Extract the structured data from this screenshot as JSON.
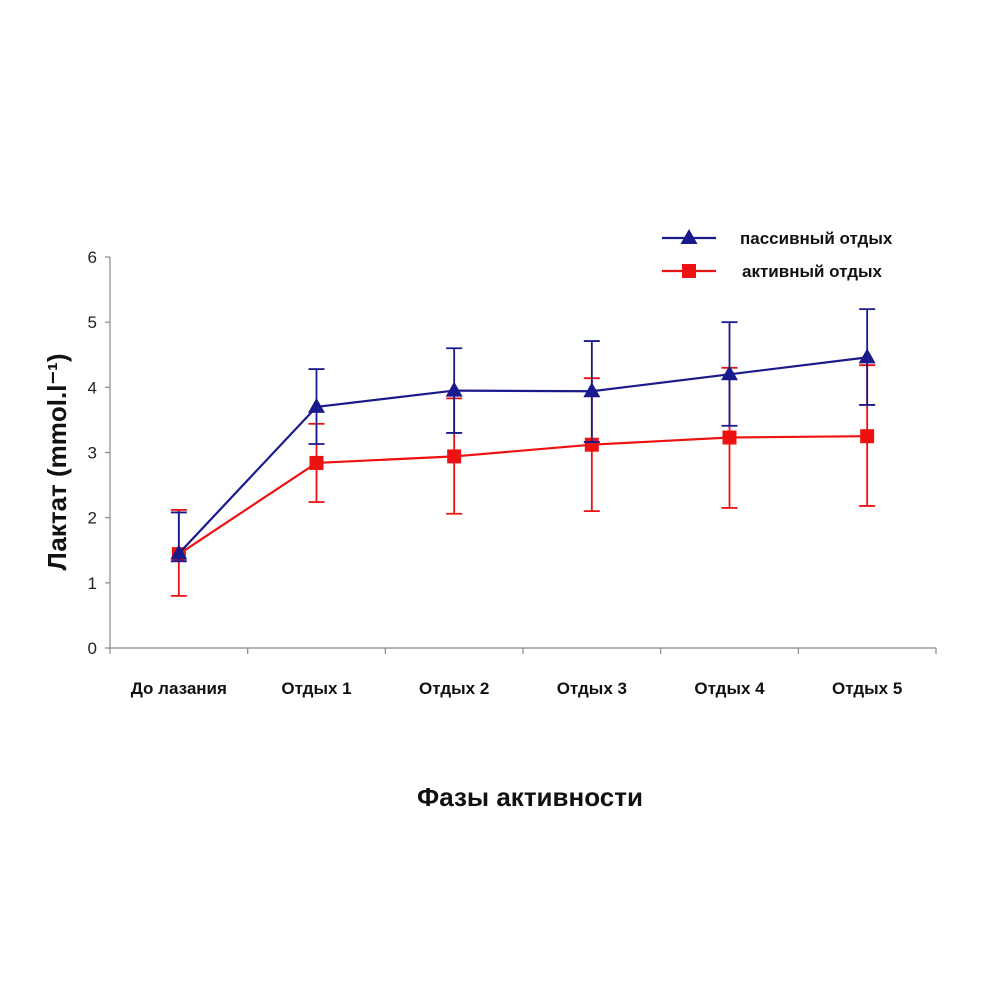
{
  "chart_data": {
    "type": "line",
    "categories": [
      "До лазания",
      "Отдых 1",
      "Отдых 2",
      "Отдых 3",
      "Отдых 4",
      "Отдых 5"
    ],
    "series": [
      {
        "name": "пассивный отдых",
        "color": "#1a1a8c",
        "marker": "triangle",
        "values": [
          1.45,
          3.7,
          3.95,
          3.94,
          4.2,
          4.46
        ],
        "error_low": [
          1.33,
          3.13,
          3.3,
          3.16,
          3.41,
          3.73
        ],
        "error_high": [
          2.08,
          4.28,
          4.6,
          4.71,
          5.0,
          5.2
        ]
      },
      {
        "name": "активный отдых",
        "color": "#ee1111",
        "marker": "square",
        "values": [
          1.44,
          2.84,
          2.94,
          3.12,
          3.23,
          3.25
        ],
        "error_low": [
          0.8,
          2.24,
          2.06,
          2.1,
          2.15,
          2.18
        ],
        "error_high": [
          2.12,
          3.44,
          3.83,
          4.14,
          4.3,
          4.34
        ]
      }
    ],
    "ylim": [
      0,
      6
    ],
    "yticks": [
      "0",
      "1",
      "2",
      "3",
      "4",
      "5",
      "6"
    ],
    "xlabel": "Фазы активности",
    "ylabel": "Лактат  (mmol.l⁻¹)",
    "legend_position": "top-right",
    "grid": false
  }
}
